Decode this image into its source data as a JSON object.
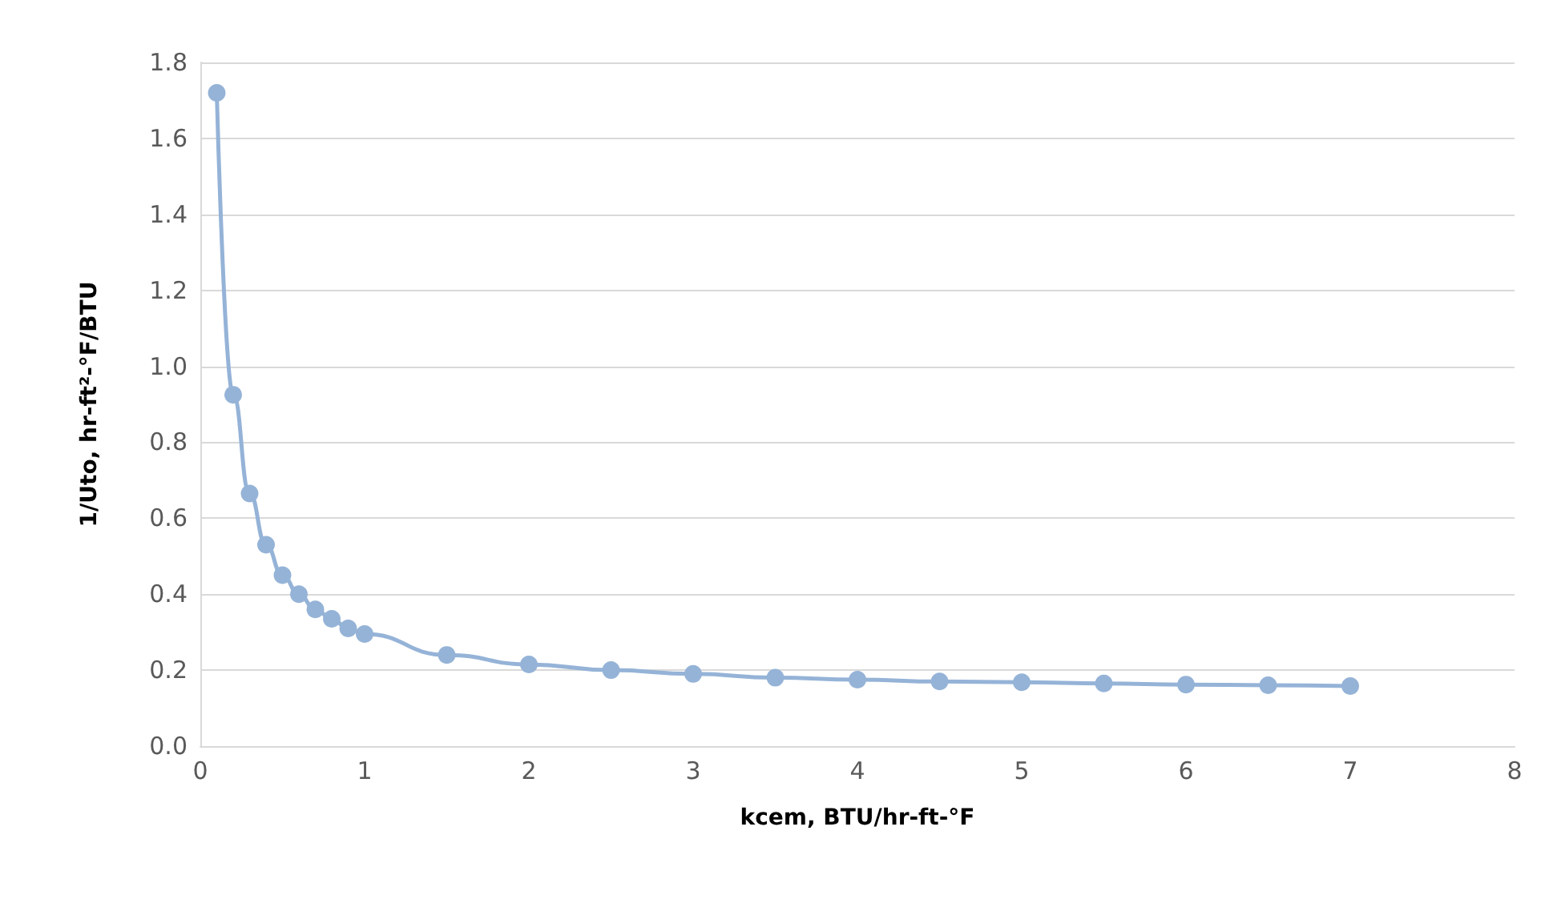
{
  "chart_data": {
    "type": "line",
    "xlabel": "kcem, BTU/hr-ft-°F",
    "ylabel": "1/Uto, hr-ft²-°F/BTU",
    "x": [
      0.1,
      0.2,
      0.3,
      0.4,
      0.5,
      0.6,
      0.7,
      0.8,
      0.9,
      1.0,
      1.5,
      2,
      2.5,
      3,
      3.5,
      4,
      4.5,
      5,
      5.5,
      6,
      6.5,
      7
    ],
    "series": [
      {
        "color": "#95b3d7",
        "values": [
          1.72,
          0.925,
          0.665,
          0.53,
          0.45,
          0.4,
          0.36,
          0.335,
          0.31,
          0.295,
          0.24,
          0.215,
          0.2,
          0.19,
          0.18,
          0.175,
          0.17,
          0.168,
          0.165,
          0.162,
          0.16,
          0.158
        ]
      }
    ],
    "xlim": [
      0,
      8
    ],
    "xticks": [
      0,
      1,
      2,
      3,
      4,
      5,
      6,
      7,
      8
    ],
    "ylim": [
      0,
      1.8
    ],
    "yticks": [
      {
        "value": 0,
        "label": "0.0"
      },
      0.2,
      0.4,
      0.6,
      0.8,
      {
        "value": 1,
        "label": "1.0"
      },
      1.2,
      1.4,
      1.6,
      1.8
    ],
    "grid": "y",
    "marker": "circle",
    "line_style": "solid"
  }
}
